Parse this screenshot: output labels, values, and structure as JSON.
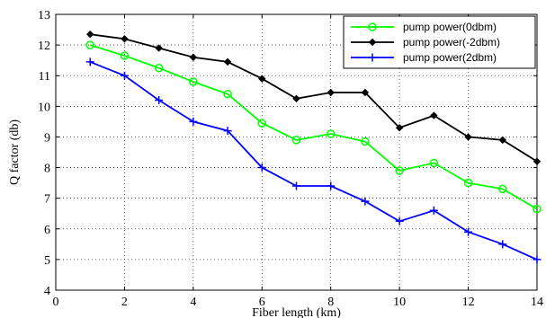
{
  "chart_data": {
    "type": "line",
    "xlabel": "Fiber length (km)",
    "ylabel": "Q factor (db)",
    "xlim": [
      0,
      14
    ],
    "ylim": [
      4,
      13
    ],
    "xticks": [
      "0",
      "2",
      "4",
      "6",
      "8",
      "10",
      "12",
      "14"
    ],
    "yticks": [
      "4",
      "5",
      "6",
      "7",
      "8",
      "9",
      "10",
      "11",
      "12",
      "13"
    ],
    "grid": true,
    "legend_position": "top-right",
    "x": [
      1,
      2,
      3,
      4,
      5,
      6,
      7,
      8,
      9,
      10,
      11,
      12,
      13,
      14
    ],
    "series": [
      {
        "name": "pump power(0dbm)",
        "color": "#00ff00",
        "marker": "circle",
        "values": [
          12.0,
          11.65,
          11.25,
          10.8,
          10.4,
          9.45,
          8.9,
          9.1,
          8.85,
          7.9,
          8.15,
          7.5,
          7.3,
          6.65
        ]
      },
      {
        "name": "pump power(-2dbm)",
        "color": "#000000",
        "marker": "diamond",
        "values": [
          12.35,
          12.2,
          11.9,
          11.6,
          11.45,
          10.9,
          10.25,
          10.45,
          10.45,
          9.3,
          9.7,
          9.0,
          8.9,
          8.2
        ]
      },
      {
        "name": "pump power(2dbm)",
        "color": "#0000ff",
        "marker": "plus",
        "values": [
          11.45,
          11.0,
          10.2,
          9.5,
          9.2,
          8.0,
          7.4,
          7.4,
          6.9,
          6.25,
          6.6,
          5.9,
          5.5,
          5.0
        ]
      }
    ]
  }
}
